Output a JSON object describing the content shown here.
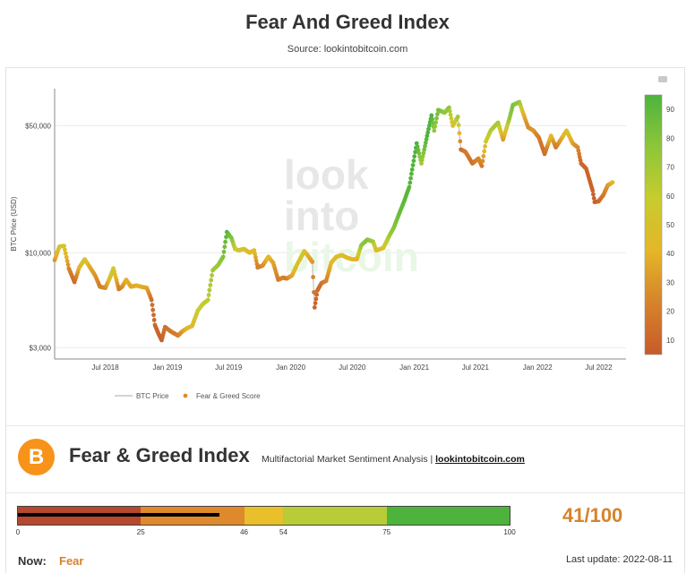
{
  "header": {
    "title": "Fear And Greed Index",
    "source": "Source: lookintobitcoin.com"
  },
  "chart_data": {
    "type": "scatter",
    "ylabel": "BTC Price (USD)",
    "y_scale": "log",
    "ylim": [
      2600,
      80000
    ],
    "y_ticks": [
      {
        "value": 3000,
        "label": "$3,000"
      },
      {
        "value": 10000,
        "label": "$10,000"
      },
      {
        "value": 50000,
        "label": "$50,000"
      }
    ],
    "x_range": [
      "2018-02-01",
      "2022-09-20"
    ],
    "x_ticks": [
      {
        "date": "2018-07-01",
        "label": "Jul 2018"
      },
      {
        "date": "2019-01-01",
        "label": "Jan 2019"
      },
      {
        "date": "2019-07-01",
        "label": "Jul 2019"
      },
      {
        "date": "2020-01-01",
        "label": "Jan 2020"
      },
      {
        "date": "2020-07-01",
        "label": "Jul 2020"
      },
      {
        "date": "2021-01-01",
        "label": "Jan 2021"
      },
      {
        "date": "2021-07-01",
        "label": "Jul 2021"
      },
      {
        "date": "2022-01-01",
        "label": "Jan 2022"
      },
      {
        "date": "2022-07-01",
        "label": "Jul 2022"
      }
    ],
    "colorbar": {
      "ticks": [
        10,
        20,
        30,
        40,
        50,
        60,
        70,
        80,
        90
      ],
      "range": [
        5,
        95
      ],
      "colors": [
        "#c65b2b",
        "#d6832b",
        "#e4b628",
        "#c7cc2e",
        "#8dc63a",
        "#4db33d"
      ]
    },
    "legend": {
      "position": "bottom",
      "items": [
        {
          "name": "BTC Price",
          "color": "#aaaaaa"
        },
        {
          "name": "Fear & Greed Score",
          "color": "#e08a2c"
        }
      ]
    },
    "watermark": [
      "look",
      "into",
      "bitcoin"
    ],
    "series": [
      {
        "name": "BTC Price",
        "points": [
          [
            "2018-02-01",
            9100,
            30
          ],
          [
            "2018-02-15",
            10800,
            52
          ],
          [
            "2018-03-01",
            10900,
            55
          ],
          [
            "2018-03-15",
            8200,
            25
          ],
          [
            "2018-04-01",
            6900,
            12
          ],
          [
            "2018-04-15",
            8300,
            40
          ],
          [
            "2018-05-01",
            9200,
            55
          ],
          [
            "2018-05-15",
            8400,
            38
          ],
          [
            "2018-06-01",
            7500,
            30
          ],
          [
            "2018-06-15",
            6500,
            20
          ],
          [
            "2018-07-01",
            6400,
            25
          ],
          [
            "2018-07-15",
            7300,
            48
          ],
          [
            "2018-07-25",
            8200,
            57
          ],
          [
            "2018-08-10",
            6300,
            20
          ],
          [
            "2018-08-20",
            6500,
            25
          ],
          [
            "2018-09-01",
            7100,
            40
          ],
          [
            "2018-09-15",
            6500,
            35
          ],
          [
            "2018-10-01",
            6600,
            38
          ],
          [
            "2018-10-15",
            6500,
            38
          ],
          [
            "2018-11-01",
            6400,
            35
          ],
          [
            "2018-11-15",
            5500,
            15
          ],
          [
            "2018-11-25",
            4000,
            10
          ],
          [
            "2018-12-05",
            3600,
            10
          ],
          [
            "2018-12-15",
            3300,
            8
          ],
          [
            "2018-12-25",
            3900,
            15
          ],
          [
            "2019-01-10",
            3700,
            18
          ],
          [
            "2019-02-01",
            3500,
            20
          ],
          [
            "2019-02-15",
            3700,
            30
          ],
          [
            "2019-03-01",
            3850,
            42
          ],
          [
            "2019-03-15",
            3950,
            45
          ],
          [
            "2019-04-01",
            4800,
            57
          ],
          [
            "2019-04-15",
            5200,
            60
          ],
          [
            "2019-05-01",
            5500,
            62
          ],
          [
            "2019-05-15",
            8000,
            70
          ],
          [
            "2019-06-01",
            8600,
            72
          ],
          [
            "2019-06-15",
            9500,
            80
          ],
          [
            "2019-06-26",
            13000,
            92
          ],
          [
            "2019-07-10",
            12000,
            80
          ],
          [
            "2019-07-20",
            10500,
            60
          ],
          [
            "2019-08-01",
            10300,
            55
          ],
          [
            "2019-08-15",
            10500,
            50
          ],
          [
            "2019-09-01",
            10000,
            42
          ],
          [
            "2019-09-15",
            10300,
            45
          ],
          [
            "2019-09-25",
            8300,
            20
          ],
          [
            "2019-10-10",
            8500,
            25
          ],
          [
            "2019-10-27",
            9500,
            45
          ],
          [
            "2019-11-10",
            8800,
            35
          ],
          [
            "2019-11-25",
            7100,
            20
          ],
          [
            "2019-12-10",
            7300,
            22
          ],
          [
            "2019-12-20",
            7200,
            20
          ],
          [
            "2020-01-05",
            7500,
            35
          ],
          [
            "2020-01-20",
            8600,
            50
          ],
          [
            "2020-02-10",
            10200,
            55
          ],
          [
            "2020-02-20",
            9700,
            40
          ],
          [
            "2020-03-05",
            8900,
            30
          ],
          [
            "2020-03-12",
            5000,
            10
          ],
          [
            "2020-03-20",
            6200,
            12
          ],
          [
            "2020-04-01",
            6800,
            15
          ],
          [
            "2020-04-15",
            7000,
            22
          ],
          [
            "2020-04-30",
            8800,
            42
          ],
          [
            "2020-05-15",
            9500,
            45
          ],
          [
            "2020-06-01",
            9700,
            50
          ],
          [
            "2020-06-15",
            9400,
            42
          ],
          [
            "2020-07-01",
            9200,
            42
          ],
          [
            "2020-07-15",
            9200,
            40
          ],
          [
            "2020-07-28",
            11000,
            75
          ],
          [
            "2020-08-15",
            11800,
            80
          ],
          [
            "2020-09-01",
            11500,
            70
          ],
          [
            "2020-09-10",
            10300,
            45
          ],
          [
            "2020-10-01",
            10600,
            50
          ],
          [
            "2020-10-20",
            12500,
            70
          ],
          [
            "2020-11-01",
            13700,
            78
          ],
          [
            "2020-11-15",
            16000,
            85
          ],
          [
            "2020-12-01",
            19000,
            90
          ],
          [
            "2020-12-17",
            23000,
            92
          ],
          [
            "2021-01-08",
            40000,
            95
          ],
          [
            "2021-01-22",
            31000,
            70
          ],
          [
            "2021-02-08",
            44000,
            95
          ],
          [
            "2021-02-21",
            57000,
            95
          ],
          [
            "2021-03-01",
            47000,
            75
          ],
          [
            "2021-03-13",
            61000,
            85
          ],
          [
            "2021-04-01",
            59000,
            75
          ],
          [
            "2021-04-14",
            63000,
            75
          ],
          [
            "2021-04-25",
            50000,
            45
          ],
          [
            "2021-05-10",
            56000,
            70
          ],
          [
            "2021-05-19",
            37000,
            12
          ],
          [
            "2021-06-01",
            36000,
            20
          ],
          [
            "2021-06-22",
            31000,
            15
          ],
          [
            "2021-07-10",
            33000,
            25
          ],
          [
            "2021-07-20",
            30000,
            20
          ],
          [
            "2021-08-01",
            41000,
            55
          ],
          [
            "2021-08-15",
            47000,
            65
          ],
          [
            "2021-09-06",
            52000,
            70
          ],
          [
            "2021-09-21",
            42000,
            30
          ],
          [
            "2021-10-10",
            55000,
            75
          ],
          [
            "2021-10-20",
            65000,
            82
          ],
          [
            "2021-11-08",
            67500,
            75
          ],
          [
            "2021-11-20",
            58000,
            40
          ],
          [
            "2021-12-04",
            49000,
            25
          ],
          [
            "2021-12-20",
            47000,
            30
          ],
          [
            "2022-01-05",
            43000,
            20
          ],
          [
            "2022-01-22",
            35000,
            12
          ],
          [
            "2022-02-10",
            44000,
            45
          ],
          [
            "2022-02-24",
            38000,
            18
          ],
          [
            "2022-03-28",
            47000,
            50
          ],
          [
            "2022-04-15",
            40000,
            35
          ],
          [
            "2022-04-30",
            38000,
            25
          ],
          [
            "2022-05-10",
            31000,
            12
          ],
          [
            "2022-05-25",
            29000,
            10
          ],
          [
            "2022-06-13",
            22000,
            8
          ],
          [
            "2022-06-19",
            19000,
            8
          ],
          [
            "2022-07-01",
            19200,
            10
          ],
          [
            "2022-07-15",
            20800,
            18
          ],
          [
            "2022-07-28",
            23500,
            30
          ],
          [
            "2022-08-11",
            24400,
            41
          ]
        ]
      }
    ]
  },
  "widget": {
    "logo_symbol": "B",
    "title": "Fear & Greed Index",
    "subtitle": "Multifactorial Market Sentiment Analysis | ",
    "subtitle_link": "lookintobitcoin.com",
    "gauge": {
      "value": 41,
      "segments": [
        {
          "from": 0,
          "to": 25,
          "color": "#b5482e"
        },
        {
          "from": 25,
          "to": 46,
          "color": "#de8a2c"
        },
        {
          "from": 46,
          "to": 54,
          "color": "#e9c02c"
        },
        {
          "from": 54,
          "to": 75,
          "color": "#b7cc37"
        },
        {
          "from": 75,
          "to": 100,
          "color": "#4db33d"
        }
      ],
      "ticks": [
        0,
        25,
        46,
        54,
        75,
        100
      ]
    },
    "score": "41/100",
    "now_label": "Now:",
    "now_value": "Fear",
    "last_update": "Last update: 2022-08-11"
  }
}
